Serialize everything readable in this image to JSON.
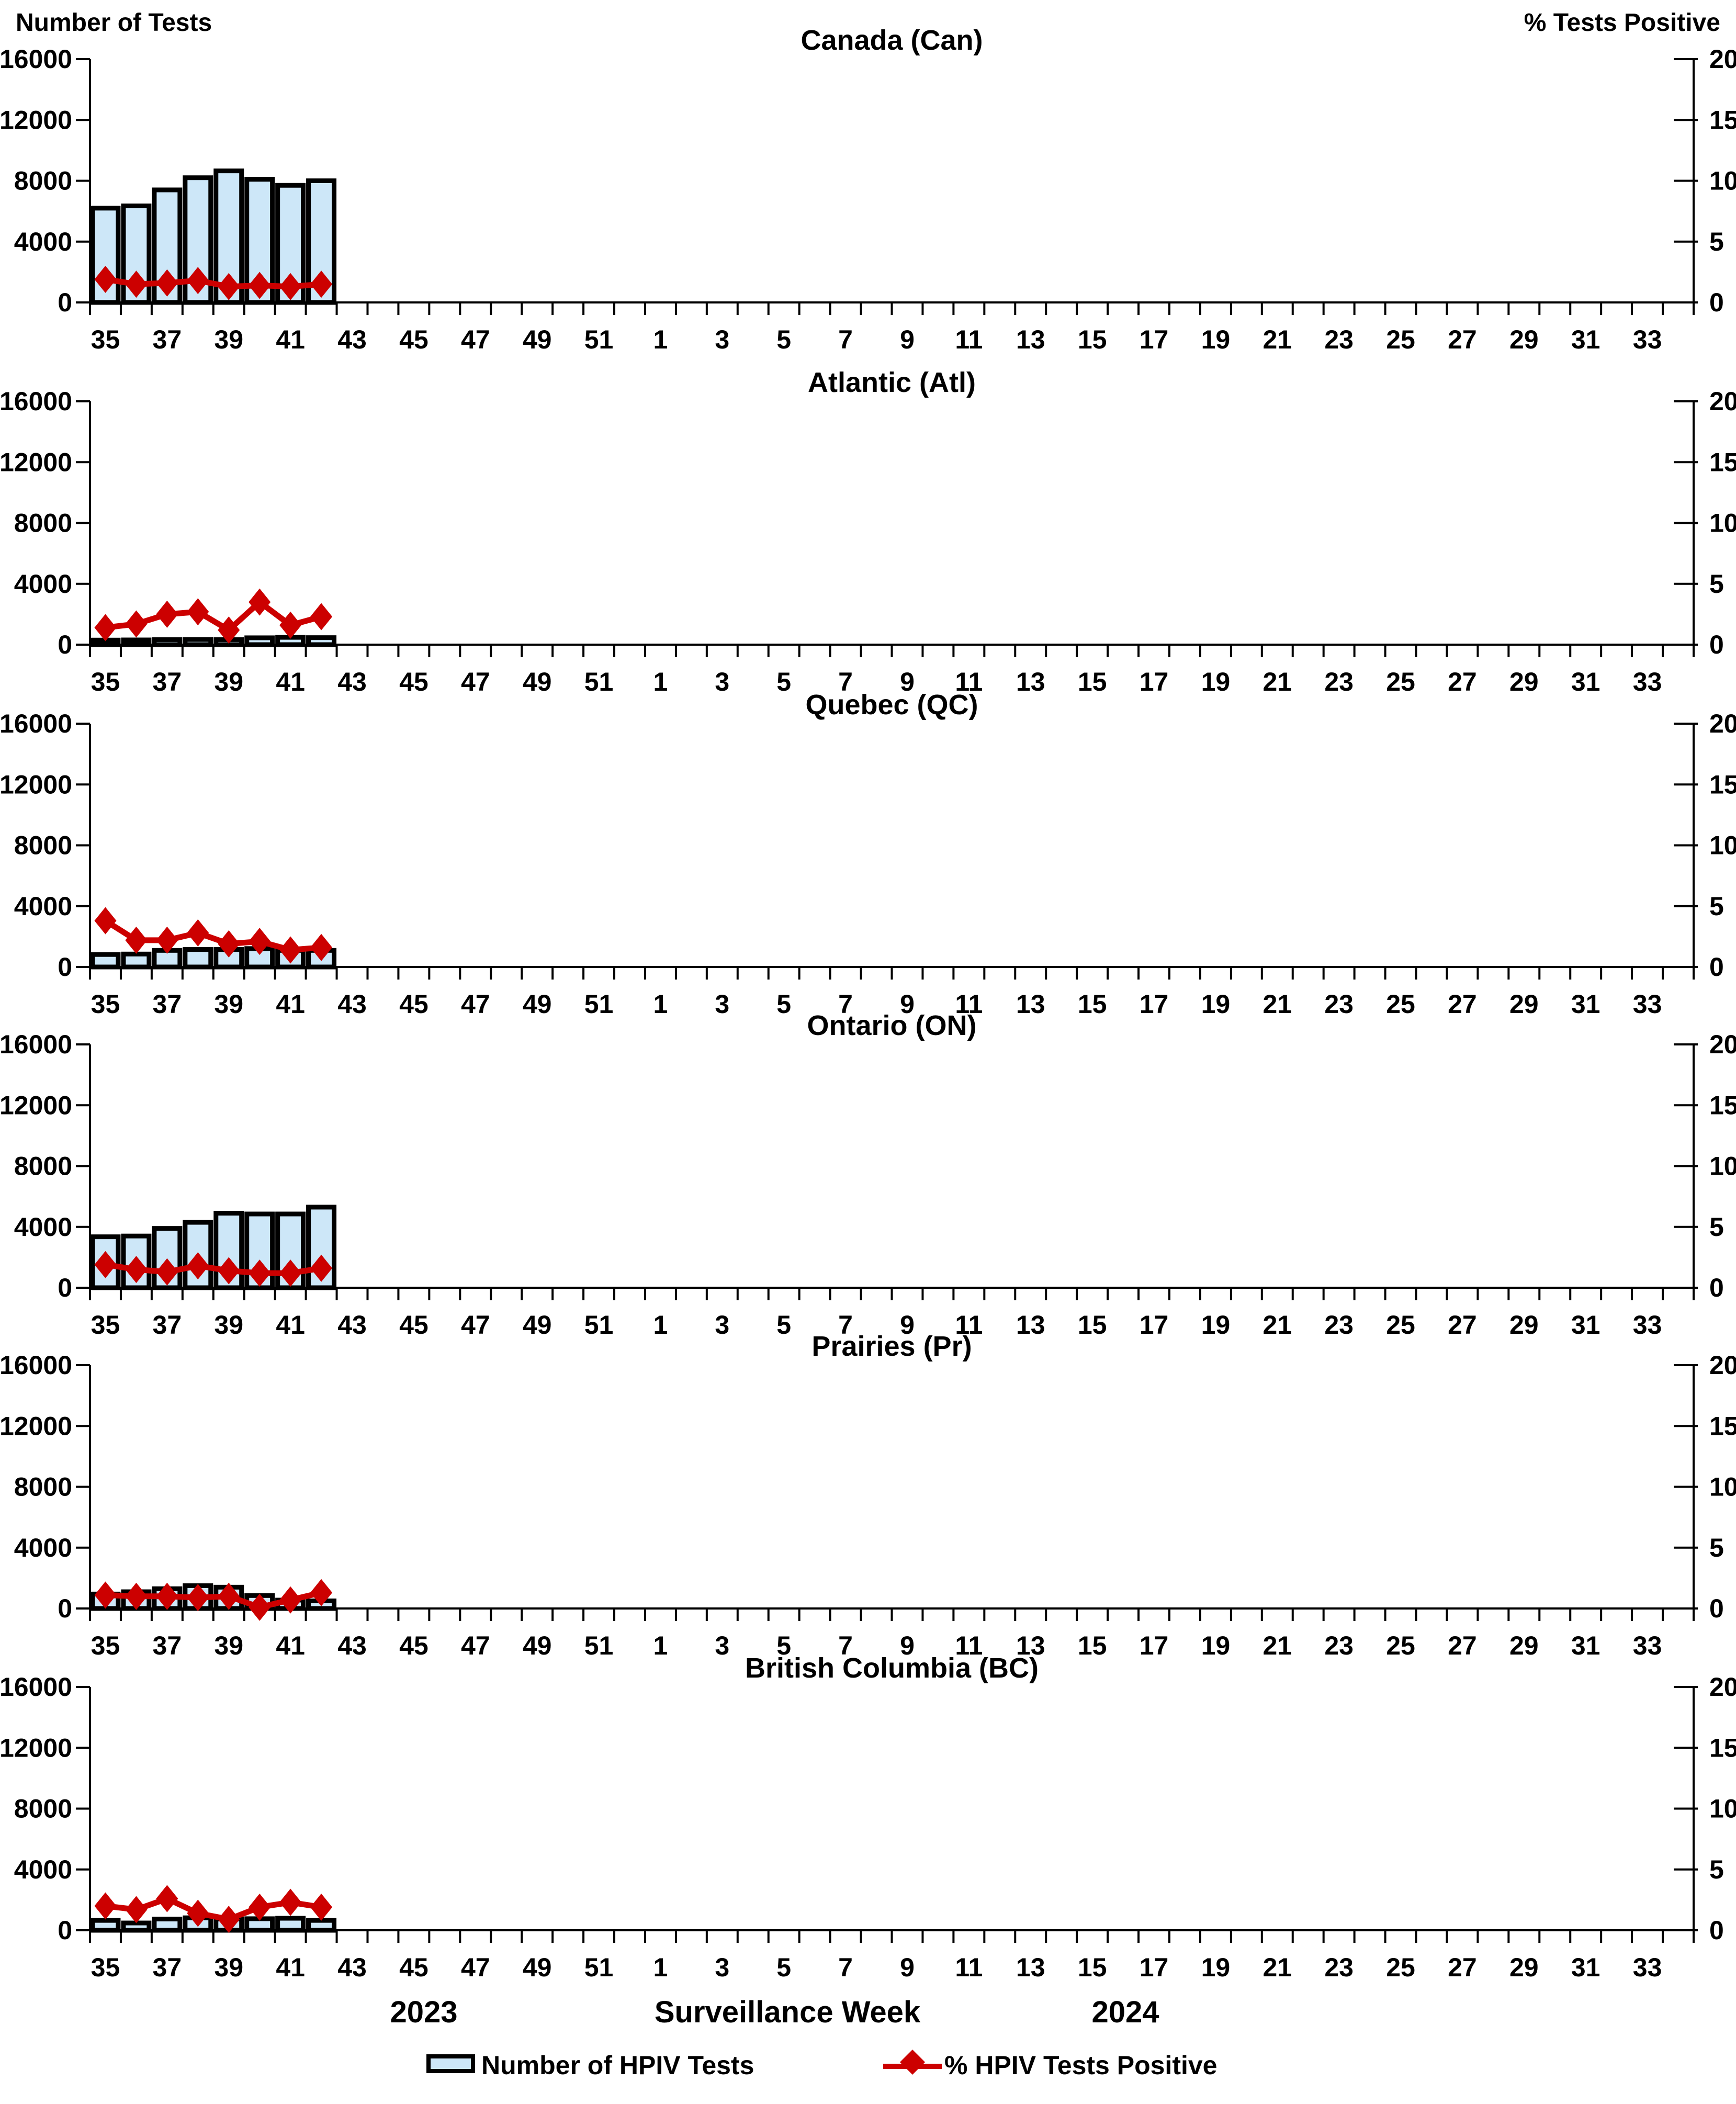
{
  "page": {
    "left_axis_title": "Number of Tests",
    "right_axis_title": "% Tests Positive",
    "x_axis_title": "Surveillance Week",
    "year_left": "2023",
    "year_right": "2024",
    "legend": [
      {
        "symbol": "bar-swatch",
        "label": "Number of HPIV Tests"
      },
      {
        "symbol": "line-diamond-marker",
        "label": "% HPIV Tests Positive"
      }
    ],
    "colors": {
      "bar_fill": "#cde7f8",
      "bar_border": "#000000",
      "line": "#cc0000",
      "text": "#000000",
      "background": "#ffffff"
    }
  },
  "chart_data": {
    "type": "bar",
    "subtype": "bar+line, 6 stacked subplots, dual y-axes",
    "x_weeks": [
      35,
      36,
      37,
      38,
      39,
      40,
      41,
      42,
      43,
      44,
      45,
      46,
      47,
      48,
      49,
      50,
      51,
      52,
      1,
      2,
      3,
      4,
      5,
      6,
      7,
      8,
      9,
      10,
      11,
      12,
      13,
      14,
      15,
      16,
      17,
      18,
      19,
      20,
      21,
      22,
      23,
      24,
      25,
      26,
      27,
      28,
      29,
      30,
      31,
      32,
      33,
      34
    ],
    "x_tick_labels_shown": [
      "35",
      "37",
      "39",
      "41",
      "43",
      "45",
      "47",
      "49",
      "51",
      "1",
      "3",
      "5",
      "7",
      "9",
      "11",
      "13",
      "15",
      "17",
      "19",
      "21",
      "23",
      "25",
      "27",
      "29",
      "31",
      "33"
    ],
    "left_ylabel": "Number of Tests",
    "right_ylabel": "% Tests Positive",
    "left_ylim": [
      0,
      16000
    ],
    "right_ylim": [
      0,
      20
    ],
    "left_ticks": [
      0,
      4000,
      8000,
      12000,
      16000
    ],
    "right_ticks": [
      0,
      5,
      10,
      15,
      20
    ],
    "grid": false,
    "legend_position": "bottom",
    "data_weeks": [
      35,
      36,
      37,
      38,
      39,
      40,
      41,
      42
    ],
    "panels": [
      {
        "title": "Canada (Can)",
        "series": [
          {
            "name": "Number of HPIV Tests",
            "axis": "left",
            "values": [
              6200,
              6350,
              7400,
              8200,
              8650,
              8100,
              7700,
              8000
            ]
          },
          {
            "name": "% HPIV Tests Positive",
            "axis": "right",
            "values": [
              1.9,
              1.5,
              1.6,
              1.8,
              1.3,
              1.4,
              1.3,
              1.5
            ]
          }
        ]
      },
      {
        "title": "Atlantic (Atl)",
        "series": [
          {
            "name": "Number of HPIV Tests",
            "axis": "left",
            "values": [
              300,
              310,
              330,
              340,
              330,
              450,
              480,
              460
            ]
          },
          {
            "name": "% HPIV Tests Positive",
            "axis": "right",
            "values": [
              1.4,
              1.7,
              2.5,
              2.7,
              1.2,
              3.5,
              1.6,
              2.3
            ]
          }
        ]
      },
      {
        "title": "Quebec (QC)",
        "series": [
          {
            "name": "Number of HPIV Tests",
            "axis": "left",
            "values": [
              820,
              850,
              1090,
              1150,
              1150,
              1210,
              1090,
              1090
            ]
          },
          {
            "name": "% HPIV Tests Positive",
            "axis": "right",
            "values": [
              3.8,
              2.2,
              2.2,
              2.8,
              1.9,
              2.1,
              1.4,
              1.6
            ]
          }
        ]
      },
      {
        "title": "Ontario (ON)",
        "series": [
          {
            "name": "Number of HPIV Tests",
            "axis": "left",
            "values": [
              3350,
              3400,
              3900,
              4300,
              4900,
              4850,
              4850,
              5300
            ]
          },
          {
            "name": "% HPIV Tests Positive",
            "axis": "right",
            "values": [
              1.9,
              1.5,
              1.3,
              1.8,
              1.4,
              1.2,
              1.2,
              1.6
            ]
          }
        ]
      },
      {
        "title": "Prairies (Pr)",
        "series": [
          {
            "name": "Number of HPIV Tests",
            "axis": "left",
            "values": [
              950,
              1100,
              1300,
              1500,
              1400,
              850,
              550,
              500
            ]
          },
          {
            "name": "% HPIV Tests Positive",
            "axis": "right",
            "values": [
              1.1,
              1.0,
              1.0,
              0.9,
              1.0,
              0.1,
              0.7,
              1.3
            ]
          }
        ]
      },
      {
        "title": "British Columbia (BC)",
        "series": [
          {
            "name": "Number of HPIV Tests",
            "axis": "left",
            "values": [
              650,
              480,
              740,
              820,
              740,
              760,
              790,
              650
            ]
          },
          {
            "name": "% HPIV Tests Positive",
            "axis": "right",
            "values": [
              2.0,
              1.7,
              2.6,
              1.4,
              0.9,
              1.9,
              2.3,
              1.9
            ]
          }
        ]
      }
    ]
  }
}
